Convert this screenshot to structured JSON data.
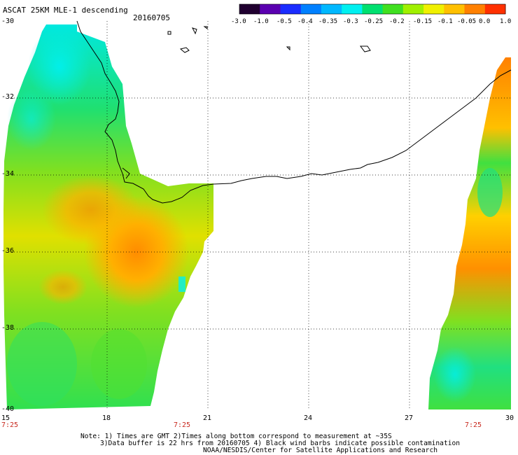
{
  "title": "ASCAT 25KM MLE-1 descending",
  "date": "20160705",
  "colorbar": {
    "labels": [
      "-3.0",
      "-1.0",
      "-0.5",
      "-0.4",
      "-0.35",
      "-0.3",
      "-0.25",
      "-0.2",
      "-0.15",
      "-0.1",
      "-0.05",
      "0.0",
      "1.0"
    ],
    "colors": [
      "#200030",
      "#5a00b0",
      "#1a2cff",
      "#0080ff",
      "#00b8ff",
      "#00f0f0",
      "#00e070",
      "#40e020",
      "#a0f000",
      "#f0f000",
      "#ffc000",
      "#ff8000",
      "#ff3000"
    ]
  },
  "axes": {
    "lon_labels": [
      "15",
      "18",
      "21",
      "24",
      "27",
      "30"
    ],
    "lat_labels": [
      "-30",
      "-32",
      "-34",
      "-36",
      "-38",
      "-40"
    ]
  },
  "pass_times": [
    "7:25",
    "7:25",
    "7:25"
  ],
  "notes": {
    "line1": "Note: 1) Times are GMT 2)Times along bottom correspond to measurement at ~35S",
    "line2": "3)Data buffer is 22 hrs from 20160705 4) Black wind barbs indicate possible contamination",
    "line3": "NOAA/NESDIS/Center for Satellite Applications and Research"
  }
}
